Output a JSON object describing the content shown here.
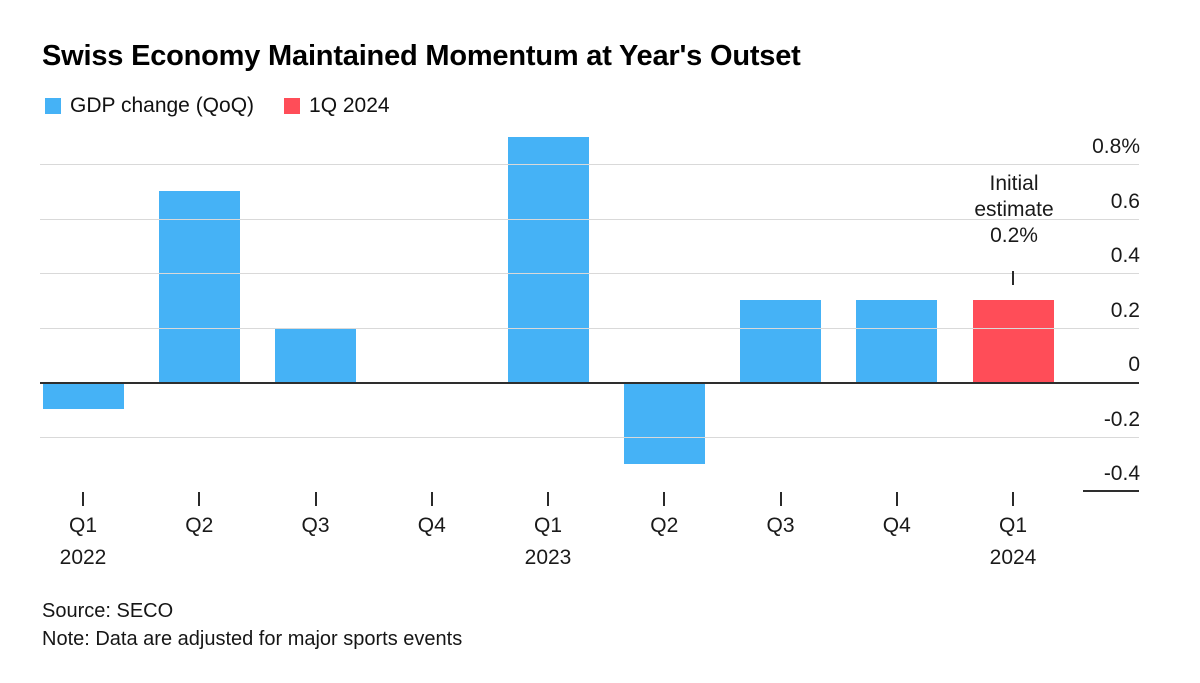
{
  "title": "Swiss Economy Maintained Momentum at Year's Outset",
  "legend": [
    {
      "label": "GDP change (QoQ)",
      "color": "#45b2f6"
    },
    {
      "label": "1Q 2024",
      "color": "#ff4d58"
    }
  ],
  "annotation": {
    "lines": [
      "Initial",
      "estimate",
      "0.2%"
    ],
    "full_text": "Initial estimate 0.2%"
  },
  "footer": {
    "source": "Source: SECO",
    "note": "Note: Data are adjusted for major sports events"
  },
  "chart_data": {
    "type": "bar",
    "title": "Swiss Economy Maintained Momentum at Year's Outset",
    "categories": [
      {
        "quarter": "Q1",
        "year": "2022"
      },
      {
        "quarter": "Q2",
        "year": ""
      },
      {
        "quarter": "Q3",
        "year": ""
      },
      {
        "quarter": "Q4",
        "year": ""
      },
      {
        "quarter": "Q1",
        "year": "2023"
      },
      {
        "quarter": "Q2",
        "year": ""
      },
      {
        "quarter": "Q3",
        "year": ""
      },
      {
        "quarter": "Q4",
        "year": ""
      },
      {
        "quarter": "Q1",
        "year": "2024"
      }
    ],
    "values": [
      -0.1,
      0.7,
      0.2,
      0.0,
      0.9,
      -0.3,
      0.3,
      0.3,
      0.3
    ],
    "unit": "percent QoQ",
    "series_name": "GDP change (QoQ)",
    "highlight_name": "1Q 2024",
    "highlight_index": 8,
    "series_color": "#45b2f6",
    "highlight_color": "#ff4d58",
    "yticks": [
      0.8,
      0.6,
      0.4,
      0.2,
      0,
      -0.2,
      -0.4
    ],
    "ytick_labels": [
      "0.8%",
      "0.6",
      "0.4",
      "0.2",
      "0",
      "-0.2",
      "-0.4"
    ],
    "ylim": [
      -0.45,
      0.95
    ],
    "grid": "horizontal",
    "axis_side": "right",
    "legend_position": "top-left",
    "annotation": {
      "text": "Initial estimate 0.2%",
      "target_category": "Q1 2024"
    }
  }
}
